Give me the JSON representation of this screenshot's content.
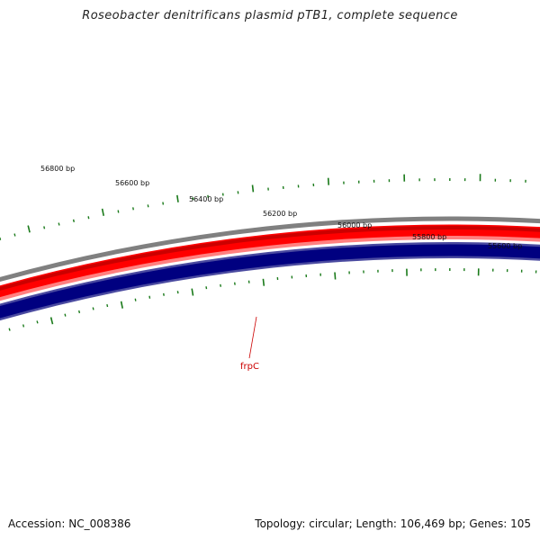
{
  "title": "Roseobacter denitrificans plasmid pTB1, complete sequence",
  "footer": {
    "accession": "Accession: NC_008386",
    "summary": "Topology: circular; Length: 106,469 bp; Genes: 105"
  },
  "ruler_labels": [
    "56800 bp",
    "56600 bp",
    "56400 bp",
    "56200 bp",
    "56000 bp",
    "55800 bp",
    "55600 bp"
  ],
  "gene": {
    "label": "frpC"
  },
  "colors": {
    "backbone": "#808080",
    "forward_strand": "#ff0000",
    "forward_strand_dark": "#cc0000",
    "forward_strand_light": "#ff8080",
    "reverse_strand": "#000080",
    "reverse_strand_edge": "#4a4aa0",
    "ticks": "#1a7a1a",
    "gene_label": "#cc0000"
  }
}
